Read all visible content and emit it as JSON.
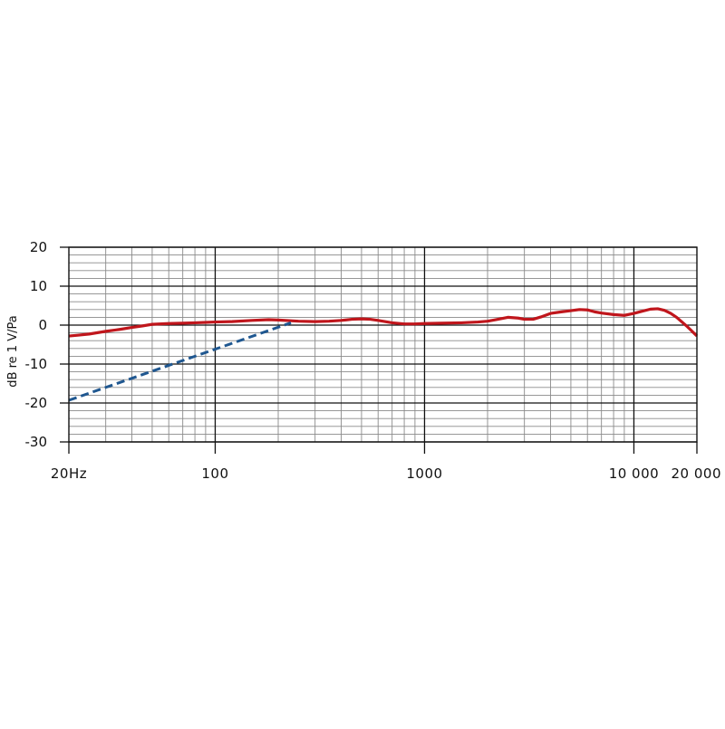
{
  "chart_data": {
    "type": "line",
    "title": "",
    "xlabel": "",
    "ylabel": "dB re 1 V/Pa",
    "x_scale": "log",
    "xlim": [
      20,
      20000
    ],
    "ylim": [
      -30,
      20
    ],
    "grid": true,
    "legend": "none",
    "yticks": [
      {
        "value": 20,
        "label": "20"
      },
      {
        "value": 10,
        "label": "10"
      },
      {
        "value": 0,
        "label": "0"
      },
      {
        "value": -10,
        "label": "-10"
      },
      {
        "value": -20,
        "label": "-20"
      },
      {
        "value": -30,
        "label": "-30"
      }
    ],
    "xticks": [
      {
        "value": 20,
        "label": "20Hz"
      },
      {
        "value": 100,
        "label": "100"
      },
      {
        "value": 1000,
        "label": "1000"
      },
      {
        "value": 10000,
        "label": "10 000"
      },
      {
        "value": 20000,
        "label": "20 000"
      }
    ],
    "series": [
      {
        "style": "solid",
        "color": "#c0161c",
        "x": [
          20,
          22,
          25,
          30,
          35,
          40,
          45,
          50,
          60,
          70,
          80,
          90,
          100,
          120,
          150,
          180,
          200,
          250,
          300,
          350,
          400,
          450,
          500,
          550,
          600,
          700,
          800,
          900,
          1000,
          1200,
          1500,
          1800,
          2000,
          2200,
          2500,
          2800,
          3000,
          3300,
          3600,
          4000,
          4500,
          5000,
          5500,
          6000,
          6500,
          7000,
          8000,
          9000,
          10000,
          11000,
          12000,
          13000,
          14000,
          15000,
          16000,
          18000,
          20000
        ],
        "y": [
          -2.8,
          -2.6,
          -2.3,
          -1.6,
          -1.1,
          -0.6,
          -0.2,
          0.2,
          0.4,
          0.5,
          0.6,
          0.7,
          0.8,
          0.9,
          1.2,
          1.4,
          1.3,
          1.0,
          0.9,
          1.0,
          1.2,
          1.5,
          1.6,
          1.5,
          1.2,
          0.6,
          0.3,
          0.3,
          0.4,
          0.5,
          0.6,
          0.8,
          1.0,
          1.4,
          2.0,
          1.8,
          1.5,
          1.5,
          2.1,
          3.0,
          3.4,
          3.7,
          4.0,
          3.9,
          3.4,
          3.1,
          2.7,
          2.5,
          3.0,
          3.6,
          4.1,
          4.2,
          3.8,
          3.0,
          2.0,
          -0.4,
          -2.8
        ]
      },
      {
        "style": "dashed",
        "color": "#1f5790",
        "x": [
          20,
          230
        ],
        "y": [
          -19.3,
          0.6
        ]
      }
    ]
  }
}
